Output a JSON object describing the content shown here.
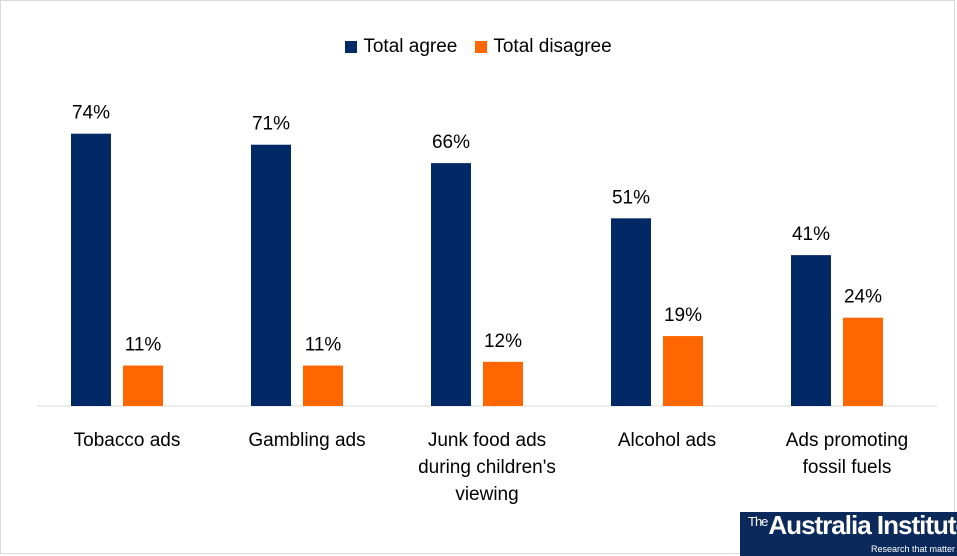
{
  "chart_data": {
    "type": "bar",
    "categories": [
      [
        "Tobacco ads"
      ],
      [
        "Gambling ads"
      ],
      [
        "Junk food ads",
        "during children's",
        "viewing"
      ],
      [
        "Alcohol ads"
      ],
      [
        "Ads promoting",
        "fossil fuels"
      ]
    ],
    "series": [
      {
        "name": "Total agree",
        "color": "#002966",
        "values": [
          74,
          71,
          66,
          51,
          41
        ],
        "labels": [
          "74%",
          "71%",
          "66%",
          "51%",
          "41%"
        ]
      },
      {
        "name": "Total disagree",
        "color": "#ff6600",
        "values": [
          11,
          11,
          12,
          19,
          24
        ],
        "labels": [
          "11%",
          "11%",
          "12%",
          "19%",
          "24%"
        ]
      }
    ],
    "ylim": [
      0,
      100
    ],
    "grid": false,
    "legend": "top-center",
    "title": "",
    "xlabel": "",
    "ylabel": ""
  },
  "logo": {
    "prefix": "The",
    "name": "Australia Institute",
    "tagline": "Research that matter"
  }
}
